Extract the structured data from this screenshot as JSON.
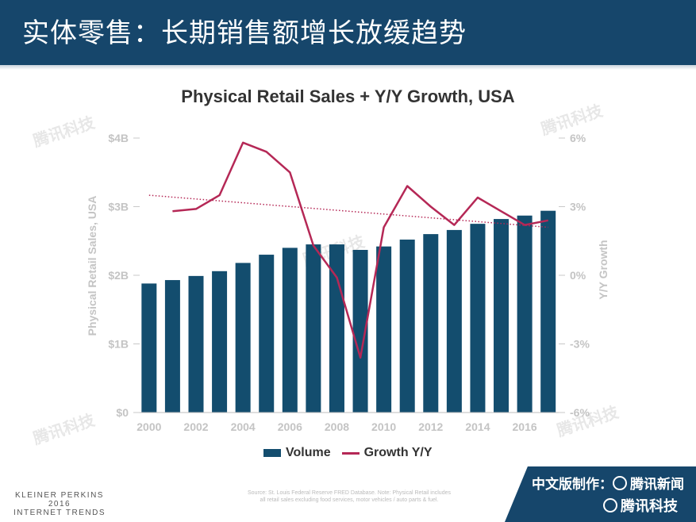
{
  "header": {
    "title": "实体零售：长期销售额增长放缓趋势"
  },
  "chart_data": {
    "type": "bar",
    "title": "Physical Retail Sales + Y/Y Growth, USA",
    "x": [
      2000,
      2001,
      2002,
      2003,
      2004,
      2005,
      2006,
      2007,
      2008,
      2009,
      2010,
      2011,
      2012,
      2013,
      2014,
      2015,
      2016,
      2017
    ],
    "x_tick_labels": [
      "2000",
      "2002",
      "2004",
      "2006",
      "2008",
      "2010",
      "2012",
      "2014",
      "2016"
    ],
    "x_tick_values": [
      2000,
      2002,
      2004,
      2006,
      2008,
      2010,
      2012,
      2014,
      2016
    ],
    "series": [
      {
        "name": "Volume",
        "type": "bar",
        "axis": "left",
        "color": "#134d6e",
        "values": [
          1.88,
          1.93,
          1.99,
          2.06,
          2.18,
          2.3,
          2.4,
          2.45,
          2.45,
          2.37,
          2.42,
          2.52,
          2.6,
          2.66,
          2.75,
          2.82,
          2.87,
          2.94
        ]
      },
      {
        "name": "Growth Y/Y",
        "type": "line",
        "axis": "right",
        "color": "#b52856",
        "values": [
          null,
          2.8,
          2.9,
          3.5,
          5.8,
          5.4,
          4.5,
          1.3,
          -0.1,
          -3.6,
          2.1,
          3.9,
          3.0,
          2.2,
          3.4,
          2.8,
          2.2,
          2.4
        ]
      }
    ],
    "trendline": {
      "color": "#b52856",
      "style": "dotted",
      "axis": "right",
      "start": 3.5,
      "end": 2.1
    },
    "left_axis": {
      "label": "Physical Retail Sales, USA",
      "ylim": [
        0,
        4
      ],
      "ticks": [
        0,
        1,
        2,
        3,
        4
      ],
      "tick_labels": [
        "$0",
        "$1B",
        "$2B",
        "$3B",
        "$4B"
      ]
    },
    "right_axis": {
      "label": "Y/Y Growth",
      "ylim": [
        -6,
        6
      ],
      "ticks": [
        -6,
        -3,
        0,
        3,
        6
      ],
      "tick_labels": [
        "-6%",
        "-3%",
        "0%",
        "3%",
        "6%"
      ]
    },
    "grid": false,
    "legend": {
      "placement": "bottom",
      "items": [
        "Volume",
        "Growth Y/Y"
      ]
    }
  },
  "footer": {
    "left_line1": "KLEINER PERKINS",
    "left_line2": "2016",
    "left_line3": "INTERNET TRENDS",
    "source_line1": "Source: St. Louis Federal Reserve FRED Database. Note: Physical Retail includes",
    "source_line2": "all retail sales excluding food services, motor vehicles / auto parts & fuel.",
    "band_line1": "中文版制作：",
    "band_brand1": "腾讯新闻",
    "band_brand2": "腾讯科技"
  },
  "watermark": {
    "text": "腾讯科技"
  }
}
